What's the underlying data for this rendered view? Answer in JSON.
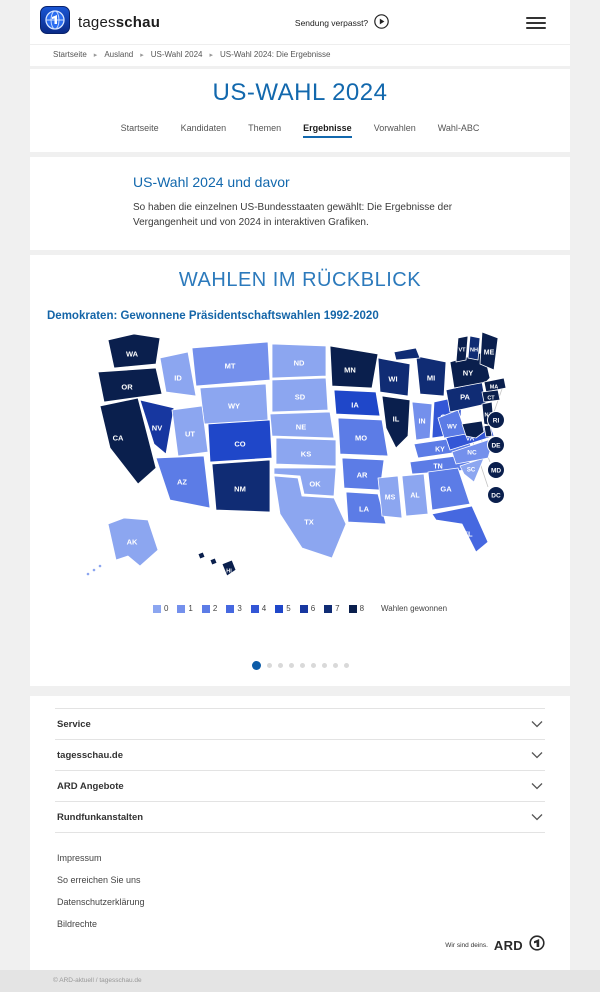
{
  "header": {
    "brand_regular": "tages",
    "brand_bold": "schau",
    "missed_label": "Sendung verpasst?"
  },
  "breadcrumb": {
    "separator": "▸",
    "items": [
      "Startseite",
      "Ausland",
      "US-Wahl 2024",
      "US-Wahl 2024: Die Ergebnisse"
    ]
  },
  "page": {
    "title": "US-WAHL 2024"
  },
  "tabs": [
    {
      "label": "Startseite",
      "active": false
    },
    {
      "label": "Kandidaten",
      "active": false
    },
    {
      "label": "Themen",
      "active": false
    },
    {
      "label": "Ergebnisse",
      "active": true
    },
    {
      "label": "Vorwahlen",
      "active": false
    },
    {
      "label": "Wahl-ABC",
      "active": false
    }
  ],
  "teaser": {
    "title": "US-Wahl 2024 und davor",
    "text": "So haben die einzelnen US-Bundesstaaten gewählt: Die Ergebnisse der Vergangenheit und von 2024 in interaktiven Grafiken."
  },
  "chart_data": {
    "type": "heatmap",
    "subtype": "us-choropleth-map",
    "title": "WAHLEN IM RÜCKBLICK",
    "subtitle": "Demokraten: Gewonnene Präsidentschaftswahlen 1992-2020",
    "legend": {
      "values": [
        0,
        1,
        2,
        3,
        4,
        5,
        6,
        7,
        8
      ],
      "colors": [
        "#8CA6F0",
        "#7490EC",
        "#5C7CE6",
        "#4668E0",
        "#3356D6",
        "#1F47C9",
        "#1737A0",
        "#102C74",
        "#0A1F4D"
      ],
      "label": "Wahlen gewonnen"
    },
    "states": [
      {
        "id": "WA",
        "value": 8
      },
      {
        "id": "OR",
        "value": 8
      },
      {
        "id": "CA",
        "value": 8
      },
      {
        "id": "NV",
        "value": 6
      },
      {
        "id": "ID",
        "value": 0
      },
      {
        "id": "MT",
        "value": 1
      },
      {
        "id": "WY",
        "value": 0
      },
      {
        "id": "UT",
        "value": 0
      },
      {
        "id": "CO",
        "value": 5
      },
      {
        "id": "AZ",
        "value": 2
      },
      {
        "id": "NM",
        "value": 7
      },
      {
        "id": "ND",
        "value": 0
      },
      {
        "id": "SD",
        "value": 0
      },
      {
        "id": "NE",
        "value": 0
      },
      {
        "id": "KS",
        "value": 0
      },
      {
        "id": "OK",
        "value": 0
      },
      {
        "id": "TX",
        "value": 0
      },
      {
        "id": "MN",
        "value": 8
      },
      {
        "id": "IA",
        "value": 5
      },
      {
        "id": "MO",
        "value": 2
      },
      {
        "id": "AR",
        "value": 2
      },
      {
        "id": "LA",
        "value": 2
      },
      {
        "id": "WI",
        "value": 7
      },
      {
        "id": "IL",
        "value": 8
      },
      {
        "id": "MI",
        "value": 7
      },
      {
        "id": "IN",
        "value": 1
      },
      {
        "id": "OH",
        "value": 4
      },
      {
        "id": "KY",
        "value": 2
      },
      {
        "id": "TN",
        "value": 2
      },
      {
        "id": "MS",
        "value": 0
      },
      {
        "id": "AL",
        "value": 0
      },
      {
        "id": "GA",
        "value": 2
      },
      {
        "id": "FL",
        "value": 3
      },
      {
        "id": "ME",
        "value": 8
      },
      {
        "id": "VT",
        "value": 8
      },
      {
        "id": "NH",
        "value": 7
      },
      {
        "id": "NY",
        "value": 8
      },
      {
        "id": "MA",
        "value": 8
      },
      {
        "id": "CT",
        "value": 8
      },
      {
        "id": "RI",
        "value": 8
      },
      {
        "id": "PA",
        "value": 7
      },
      {
        "id": "NJ",
        "value": 8
      },
      {
        "id": "DE",
        "value": 8
      },
      {
        "id": "MD",
        "value": 8
      },
      {
        "id": "DC",
        "value": 8
      },
      {
        "id": "VA",
        "value": 4
      },
      {
        "id": "WV",
        "value": 2
      },
      {
        "id": "NC",
        "value": 1
      },
      {
        "id": "SC",
        "value": 0
      },
      {
        "id": "AK",
        "value": 0
      },
      {
        "id": "HI",
        "value": 8
      }
    ]
  },
  "carousel": {
    "dot_count": 9,
    "active_index": 0
  },
  "footer": {
    "accordions": [
      "Service",
      "tagesschau.de",
      "ARD Angebote",
      "Rundfunkanstalten"
    ],
    "links": [
      "Impressum",
      "So erreichen Sie uns",
      "Datenschutzerklärung",
      "Bildrechte"
    ],
    "ard_claim": "Wir sind deins.",
    "ard_word": "ARD",
    "copyright": "© ARD-aktuell / tagesschau.de"
  },
  "colors": {
    "brand_blue": "#1268ad",
    "active_dot": "#0d5ca8",
    "page_background": "#f0f0f0"
  }
}
